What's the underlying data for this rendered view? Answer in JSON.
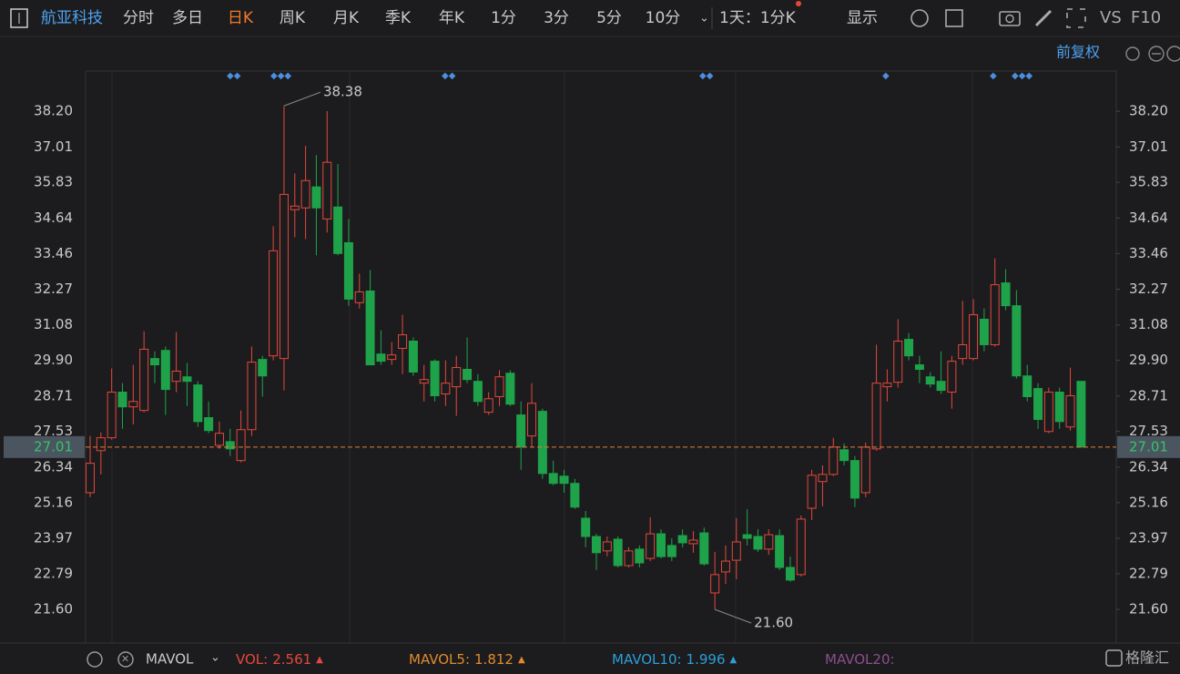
{
  "toolbar": {
    "stock": "航亚科技",
    "periods": [
      "分时",
      "多日",
      "日K",
      "周K",
      "月K",
      "季K",
      "年K",
      "1分",
      "3分",
      "5分",
      "10分"
    ],
    "active_index": 2,
    "interval": "1天：1分K",
    "display": "显示",
    "vs": "VS",
    "f10": "F10"
  },
  "adjust": "前复权",
  "chart_data": {
    "type": "candlestick",
    "open": [
      25.49,
      26.89,
      27.32,
      28.84,
      28.35,
      28.23,
      29.96,
      30.23,
      29.2,
      29.35,
      29.08,
      27.99,
      27.07,
      27.19,
      26.56,
      27.59,
      29.93,
      30.05,
      29.96,
      34.92,
      34.98,
      35.68,
      34.61,
      35.01,
      33.82,
      31.82,
      32.21,
      30.11,
      29.93,
      30.3,
      30.54,
      29.14,
      29.87,
      28.78,
      29.02,
      29.6,
      29.2,
      28.17,
      28.69,
      29.47,
      28.08,
      27.38,
      28.2,
      26.13,
      26.04,
      25.8,
      24.64,
      24.03,
      23.55,
      23.94,
      23.06,
      23.61,
      23.3,
      24.12,
      23.73,
      24.06,
      23.79,
      24.15,
      22.15,
      22.85,
      23.24,
      24.09,
      24.03,
      23.61,
      24.06,
      23,
      22.76,
      24.97,
      25.86,
      26.1,
      26.92,
      26.56,
      25.49,
      26.95,
      29.02,
      29.17,
      30.6,
      29.75,
      29.35,
      29.2,
      28.84,
      29.96,
      29.96,
      31.27,
      30.42,
      32.48,
      31.72,
      29.38,
      28.96,
      27.53,
      28.84,
      27.68,
      29.2
    ],
    "high": [
      27.38,
      27.5,
      29.63,
      29.14,
      29.75,
      30.87,
      30.2,
      30.36,
      30.84,
      29.81,
      29.2,
      28.53,
      27.86,
      27.62,
      28.23,
      30.36,
      30.05,
      34.37,
      38.38,
      36.13,
      37.05,
      36.74,
      38.2,
      36.44,
      34.61,
      32.79,
      32.91,
      30.9,
      30.51,
      31.42,
      30.66,
      29.75,
      29.93,
      29.9,
      30.05,
      30.66,
      29.44,
      28.84,
      29.57,
      29.57,
      28.53,
      29.14,
      28.29,
      26.56,
      26.25,
      25.95,
      24.88,
      24.12,
      24.03,
      24.03,
      23.67,
      23.73,
      24.67,
      24.27,
      23.97,
      24.27,
      24.21,
      24.33,
      23.52,
      23.73,
      24.64,
      24.94,
      24.27,
      24.27,
      24.27,
      23.36,
      24.73,
      26.25,
      26.4,
      27.32,
      27.13,
      26.71,
      27.16,
      30.42,
      29.6,
      31.27,
      30.81,
      30.05,
      29.5,
      30.2,
      30.05,
      31.88,
      31.94,
      31.63,
      33.3,
      32.94,
      32.24,
      29.75,
      29.14,
      28.99,
      28.99,
      29.66,
      29.2
    ],
    "low": [
      25.34,
      26.1,
      27.26,
      27.62,
      27.77,
      28.17,
      29.14,
      28.08,
      28.84,
      28.38,
      27.68,
      27.47,
      26.95,
      26.71,
      26.5,
      27.38,
      28.69,
      29.9,
      28.9,
      34,
      33.94,
      33.4,
      34.16,
      33.4,
      31.72,
      31.63,
      29.75,
      29.75,
      29.75,
      29.44,
      29.38,
      28.53,
      28.53,
      28.38,
      28.05,
      29.14,
      28.38,
      28.08,
      28.38,
      28.38,
      26.25,
      27.01,
      25.95,
      25.74,
      25.49,
      24.95,
      23.67,
      22.91,
      23.37,
      23,
      23,
      23,
      23.21,
      23.3,
      23.21,
      23.67,
      23.49,
      23.06,
      21.6,
      22.45,
      22.61,
      23.73,
      23.52,
      23.42,
      22.91,
      22.52,
      22.7,
      24.58,
      25.04,
      26.04,
      26.4,
      25.01,
      25.34,
      26.89,
      28.53,
      28.99,
      29.9,
      29.14,
      28.99,
      28.78,
      28.29,
      29.75,
      29.9,
      30.2,
      30.36,
      31.57,
      29.29,
      28.53,
      27.62,
      27.47,
      27.62,
      27.56,
      27.01
    ],
    "close": [
      26.47,
      27.32,
      28.84,
      28.35,
      28.53,
      30.27,
      29.75,
      28.93,
      29.54,
      29.2,
      27.86,
      27.56,
      27.47,
      26.95,
      27.59,
      29.84,
      29.38,
      33.55,
      35.43,
      35.04,
      35.89,
      34.98,
      36.5,
      33.46,
      31.94,
      32.18,
      29.75,
      29.87,
      30.08,
      30.75,
      29.51,
      29.26,
      28.72,
      29.14,
      29.66,
      29.26,
      28.53,
      28.62,
      29.35,
      28.44,
      27.01,
      28.47,
      26.13,
      25.8,
      25.8,
      25.01,
      24.03,
      23.49,
      23.85,
      23.06,
      23.55,
      23.15,
      24.12,
      23.36,
      23.36,
      23.82,
      23.91,
      23.12,
      22.76,
      23.21,
      23.85,
      23.97,
      23.61,
      24.09,
      23,
      22.58,
      24.61,
      26.07,
      26.1,
      27.01,
      26.56,
      25.31,
      27.01,
      29.14,
      29.14,
      30.54,
      30.05,
      29.6,
      29.11,
      28.9,
      29.87,
      30.42,
      31.42,
      30.42,
      32.42,
      31.72,
      29.38,
      28.69,
      27.93,
      28.84,
      27.86,
      28.72,
      27.01
    ],
    "ylim": [
      20.48,
      39.54
    ],
    "yticks": [
      {
        "value": 38.2,
        "label": "38.20"
      },
      37.01,
      35.83,
      34.64,
      33.46,
      32.27,
      31.08,
      {
        "value": 29.9,
        "label": "29.90"
      },
      28.71,
      27.53,
      26.34,
      25.16,
      23.97,
      22.79,
      {
        "value": 21.6,
        "label": "21.60"
      }
    ],
    "colors": {
      "up": "#e5473c",
      "down": "#1fa34a",
      "last": "#e07b39"
    },
    "annotations": {
      "high": {
        "value": 38.38,
        "label": "38.38"
      },
      "low": {
        "value": 21.6,
        "label": "21.60"
      }
    },
    "last_price": 27.01
  },
  "indicator_bar": {
    "name": "MAVOL",
    "items": [
      {
        "label": "VOL:",
        "value": 2.561,
        "color": "#e5473c"
      },
      {
        "label": "MAVOL5:",
        "value": 1.812,
        "color": "#e08a2d"
      },
      {
        "label": "MAVOL10:",
        "value": 1.996,
        "color": "#2a9fd8"
      },
      {
        "label": "MAVOL20:",
        "color": "#8a4f8f"
      }
    ]
  },
  "watermark": "格隆汇"
}
